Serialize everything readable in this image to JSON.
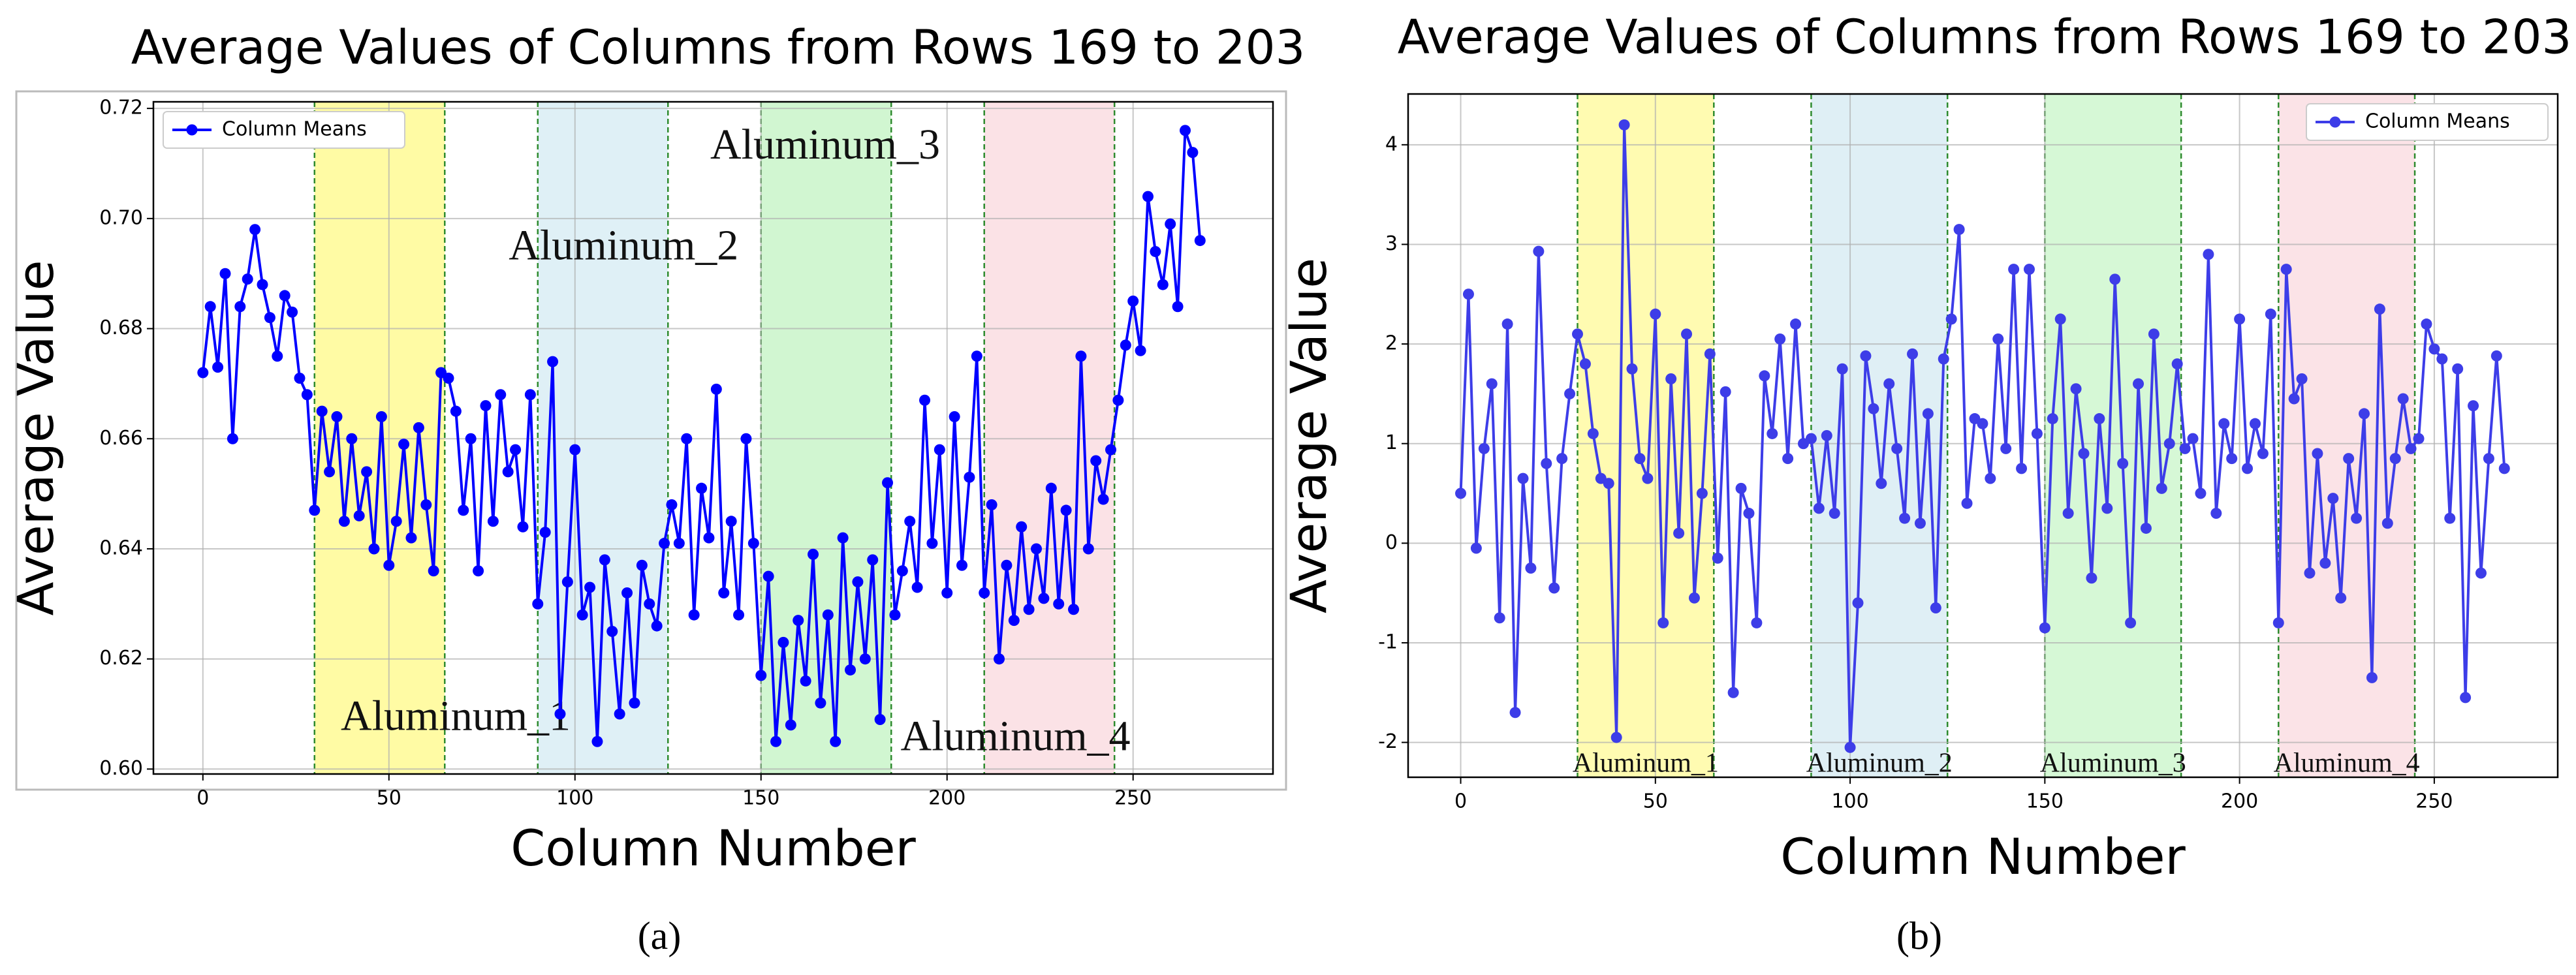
{
  "chart_data": [
    {
      "type": "line",
      "title": "Average Values of Columns from Rows 169 to 203",
      "xlabel": "Column Number",
      "ylabel": "Average Value",
      "caption": "(a)",
      "xlim": [
        -13.3,
        287.6
      ],
      "ylim": [
        0.5991,
        0.7212
      ],
      "xticks": [
        0,
        50,
        100,
        150,
        200,
        250
      ],
      "yticks": [
        {
          "value": 0.6,
          "label": "0.60"
        },
        0.62,
        0.64,
        0.66,
        0.68,
        {
          "value": 0.7,
          "label": "0.70"
        },
        0.72
      ],
      "grid": true,
      "legend": "upper left",
      "regions": [
        {
          "label": "Aluminum_1",
          "start": 30,
          "end": 65,
          "color": "#fffb9a"
        },
        {
          "label": "Aluminum_2",
          "start": 90,
          "end": 125,
          "color": "#dceef5"
        },
        {
          "label": "Aluminum_3",
          "start": 150,
          "end": 185,
          "color": "#ccf5cc"
        },
        {
          "label": "Aluminum_4",
          "start": 210,
          "end": 245,
          "color": "#fbdfe3"
        }
      ],
      "x": [
        0,
        2,
        4,
        6,
        8,
        10,
        12,
        14,
        16,
        18,
        20,
        22,
        24,
        26,
        28,
        30,
        32,
        34,
        36,
        38,
        40,
        42,
        44,
        46,
        48,
        50,
        52,
        54,
        56,
        58,
        60,
        62,
        64,
        66,
        68,
        70,
        72,
        74,
        76,
        78,
        80,
        82,
        84,
        86,
        88,
        90,
        92,
        94,
        96,
        98,
        100,
        102,
        104,
        106,
        108,
        110,
        112,
        114,
        116,
        118,
        120,
        122,
        124,
        126,
        128,
        130,
        132,
        134,
        136,
        138,
        140,
        142,
        144,
        146,
        148,
        150,
        152,
        154,
        156,
        158,
        160,
        162,
        164,
        166,
        168,
        170,
        172,
        174,
        176,
        178,
        180,
        182,
        184,
        186,
        188,
        190,
        192,
        194,
        196,
        198,
        200,
        202,
        204,
        206,
        208,
        210,
        212,
        214,
        216,
        218,
        220,
        222,
        224,
        226,
        228,
        230,
        232,
        234,
        236,
        238,
        240,
        242,
        244,
        246,
        248,
        250,
        252,
        254,
        256,
        258,
        260,
        262,
        264,
        266,
        268
      ],
      "series": [
        {
          "name": "Column Means",
          "color": "#0000ff",
          "values": [
            0.672,
            0.684,
            0.673,
            0.69,
            0.66,
            0.684,
            0.689,
            0.698,
            0.688,
            0.682,
            0.675,
            0.686,
            0.683,
            0.671,
            0.668,
            0.647,
            0.665,
            0.654,
            0.664,
            0.645,
            0.66,
            0.646,
            0.654,
            0.64,
            0.664,
            0.637,
            0.645,
            0.659,
            0.642,
            0.662,
            0.648,
            0.636,
            0.672,
            0.671,
            0.665,
            0.647,
            0.66,
            0.636,
            0.666,
            0.645,
            0.668,
            0.654,
            0.658,
            0.644,
            0.668,
            0.63,
            0.643,
            0.674,
            0.61,
            0.634,
            0.658,
            0.628,
            0.633,
            0.605,
            0.638,
            0.625,
            0.61,
            0.632,
            0.612,
            0.637,
            0.63,
            0.626,
            0.641,
            0.648,
            0.641,
            0.66,
            0.628,
            0.651,
            0.642,
            0.669,
            0.632,
            0.645,
            0.628,
            0.66,
            0.641,
            0.617,
            0.635,
            0.605,
            0.623,
            0.608,
            0.627,
            0.616,
            0.639,
            0.612,
            0.628,
            0.605,
            0.642,
            0.618,
            0.634,
            0.62,
            0.638,
            0.609,
            0.652,
            0.628,
            0.636,
            0.645,
            0.633,
            0.667,
            0.641,
            0.658,
            0.632,
            0.664,
            0.637,
            0.653,
            0.675,
            0.632,
            0.648,
            0.62,
            0.637,
            0.627,
            0.644,
            0.629,
            0.64,
            0.631,
            0.651,
            0.63,
            0.647,
            0.629,
            0.675,
            0.64,
            0.656,
            0.649,
            0.658,
            0.667,
            0.677,
            0.685,
            0.676,
            0.704,
            0.694,
            0.688,
            0.699,
            0.684,
            0.716,
            0.712,
            0.696
          ]
        }
      ]
    },
    {
      "type": "line",
      "title": "Average Values of Columns from Rows 169 to 203",
      "xlabel": "Column Number",
      "ylabel": "Average Value",
      "caption": "(b)",
      "xlim": [
        -13.5,
        281.7
      ],
      "ylim": [
        -2.35,
        4.51
      ],
      "xticks": [
        0,
        50,
        100,
        150,
        200,
        250
      ],
      "yticks": [
        -2,
        -1,
        0,
        1,
        2,
        3,
        4
      ],
      "grid": true,
      "legend": "upper right",
      "regions": [
        {
          "label": "Aluminum_1",
          "start": 30,
          "end": 65,
          "color": "#fffba8"
        },
        {
          "label": "Aluminum_2",
          "start": 90,
          "end": 125,
          "color": "#dcedf4"
        },
        {
          "label": "Aluminum_3",
          "start": 150,
          "end": 185,
          "color": "#d2f7d2"
        },
        {
          "label": "Aluminum_4",
          "start": 210,
          "end": 245,
          "color": "#fbe0e4"
        }
      ],
      "x": [
        0,
        2,
        4,
        6,
        8,
        10,
        12,
        14,
        16,
        18,
        20,
        22,
        24,
        26,
        28,
        30,
        32,
        34,
        36,
        38,
        40,
        42,
        44,
        46,
        48,
        50,
        52,
        54,
        56,
        58,
        60,
        62,
        64,
        66,
        68,
        70,
        72,
        74,
        76,
        78,
        80,
        82,
        84,
        86,
        88,
        90,
        92,
        94,
        96,
        98,
        100,
        102,
        104,
        106,
        108,
        110,
        112,
        114,
        116,
        118,
        120,
        122,
        124,
        126,
        128,
        130,
        132,
        134,
        136,
        138,
        140,
        142,
        144,
        146,
        148,
        150,
        152,
        154,
        156,
        158,
        160,
        162,
        164,
        166,
        168,
        170,
        172,
        174,
        176,
        178,
        180,
        182,
        184,
        186,
        188,
        190,
        192,
        194,
        196,
        198,
        200,
        202,
        204,
        206,
        208,
        210,
        212,
        214,
        216,
        218,
        220,
        222,
        224,
        226,
        228,
        230,
        232,
        234,
        236,
        238,
        240,
        242,
        244,
        246,
        248,
        250,
        252,
        254,
        256,
        258,
        260,
        262,
        264,
        266,
        268
      ],
      "series": [
        {
          "name": "Column Means",
          "color": "#3d3de8",
          "values": [
            0.5,
            2.5,
            -0.05,
            0.95,
            1.6,
            -0.75,
            2.2,
            -1.7,
            0.65,
            -0.25,
            2.93,
            0.8,
            -0.45,
            0.85,
            1.5,
            2.1,
            1.8,
            1.1,
            0.65,
            0.6,
            -1.95,
            4.2,
            1.75,
            0.85,
            0.65,
            2.3,
            -0.8,
            1.65,
            0.1,
            2.1,
            -0.55,
            0.5,
            1.9,
            -0.15,
            1.52,
            -1.5,
            0.55,
            0.3,
            -0.8,
            1.68,
            1.1,
            2.05,
            0.85,
            2.2,
            1.0,
            1.05,
            0.35,
            1.08,
            0.3,
            1.75,
            -2.05,
            -0.6,
            1.88,
            1.35,
            0.6,
            1.6,
            0.95,
            0.25,
            1.9,
            0.2,
            1.3,
            -0.65,
            1.85,
            2.25,
            3.15,
            0.4,
            1.25,
            1.2,
            0.65,
            2.05,
            0.95,
            2.75,
            0.75,
            2.75,
            1.1,
            -0.85,
            1.25,
            2.25,
            0.3,
            1.55,
            0.9,
            -0.35,
            1.25,
            0.35,
            2.65,
            0.8,
            -0.8,
            1.6,
            0.15,
            2.1,
            0.55,
            1.0,
            1.8,
            0.95,
            1.05,
            0.5,
            2.9,
            0.3,
            1.2,
            0.85,
            2.25,
            0.75,
            1.2,
            0.9,
            2.3,
            -0.8,
            2.75,
            1.45,
            1.65,
            -0.3,
            0.9,
            -0.2,
            0.45,
            -0.55,
            0.85,
            0.25,
            1.3,
            -1.35,
            2.35,
            0.2,
            0.85,
            1.45,
            0.95,
            1.05,
            2.2,
            1.95,
            1.85,
            0.25,
            1.75,
            -1.55,
            1.38,
            -0.3,
            0.85,
            1.88,
            0.75
          ]
        }
      ]
    }
  ]
}
